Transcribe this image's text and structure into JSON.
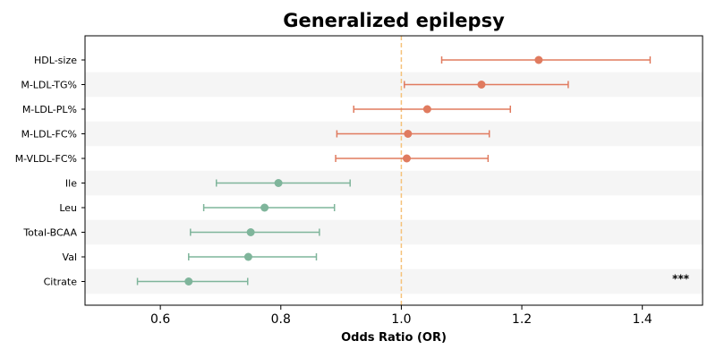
{
  "chart_data": {
    "type": "scatter",
    "subtype": "forest-plot",
    "title": "Generalized epilepsy",
    "xlabel": "Odds Ratio (OR)",
    "ylabel": "",
    "xlim": [
      0.475,
      1.5
    ],
    "xticks": [
      "0.6",
      "0.8",
      "1.0",
      "1.2",
      "1.4"
    ],
    "xtick_values": [
      0.6,
      0.8,
      1.0,
      1.2,
      1.4
    ],
    "reference_line": 1.0,
    "grid": false,
    "row_stripes": true,
    "colors": {
      "positive": "#E07B5F",
      "negative": "#7FB59B",
      "reference_line": "#F5C27A",
      "stripe": "#F5F5F5",
      "axis": "#000000"
    },
    "rows": [
      {
        "label": "HDL-size",
        "or": 1.228,
        "lower": 1.067,
        "upper": 1.413,
        "color_key": "positive",
        "annotation": ""
      },
      {
        "label": "M-LDL-TG%",
        "or": 1.133,
        "lower": 1.005,
        "upper": 1.277,
        "color_key": "positive",
        "annotation": ""
      },
      {
        "label": "M-LDL-PL%",
        "or": 1.043,
        "lower": 0.921,
        "upper": 1.181,
        "color_key": "positive",
        "annotation": ""
      },
      {
        "label": "M-LDL-FC%",
        "or": 1.011,
        "lower": 0.893,
        "upper": 1.146,
        "color_key": "positive",
        "annotation": ""
      },
      {
        "label": "M-VLDL-FC%",
        "or": 1.009,
        "lower": 0.891,
        "upper": 1.144,
        "color_key": "positive",
        "annotation": ""
      },
      {
        "label": "Ile",
        "or": 0.796,
        "lower": 0.693,
        "upper": 0.915,
        "color_key": "negative",
        "annotation": ""
      },
      {
        "label": "Leu",
        "or": 0.773,
        "lower": 0.672,
        "upper": 0.889,
        "color_key": "negative",
        "annotation": ""
      },
      {
        "label": "Total-BCAA",
        "or": 0.75,
        "lower": 0.65,
        "upper": 0.864,
        "color_key": "negative",
        "annotation": ""
      },
      {
        "label": "Val",
        "or": 0.746,
        "lower": 0.647,
        "upper": 0.859,
        "color_key": "negative",
        "annotation": ""
      },
      {
        "label": "Citrate",
        "or": 0.647,
        "lower": 0.562,
        "upper": 0.745,
        "color_key": "negative",
        "annotation": "***"
      }
    ]
  }
}
